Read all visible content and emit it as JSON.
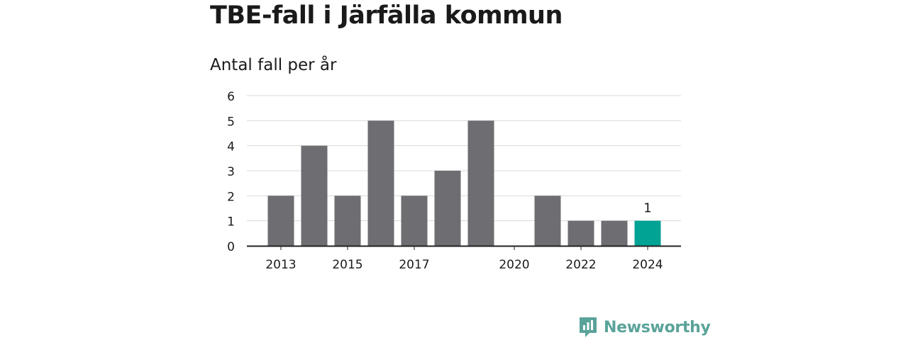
{
  "title": "TBE-fall i Järfälla kommun",
  "subtitle": "Antal fall per år",
  "brand": {
    "name": "Newsworthy",
    "icon": "newsworthy-logo-icon"
  },
  "colors": {
    "bar": "#6e6d72",
    "highlight": "#00a394",
    "grid": "#d9d9d9",
    "axis": "#222222",
    "text": "#1a1a1a"
  },
  "chart_data": {
    "type": "bar",
    "categories": [
      "2013",
      "2014",
      "2015",
      "2016",
      "2017",
      "2018",
      "2019",
      "2020",
      "2021",
      "2022",
      "2023",
      "2024"
    ],
    "values": [
      2,
      4,
      2,
      5,
      2,
      3,
      5,
      0,
      2,
      1,
      1,
      1
    ],
    "x_tick_labels": [
      "2013",
      "2015",
      "2017",
      "2020",
      "2022",
      "2024"
    ],
    "y_ticks": [
      0,
      1,
      2,
      3,
      4,
      5,
      6
    ],
    "ylim": [
      0,
      6
    ],
    "grid": true,
    "highlight_category": "2024",
    "data_labels": [
      {
        "category": "2024",
        "text": "1"
      }
    ],
    "title": "TBE-fall i Järfälla kommun",
    "ylabel": "Antal fall per år",
    "xlabel": ""
  }
}
